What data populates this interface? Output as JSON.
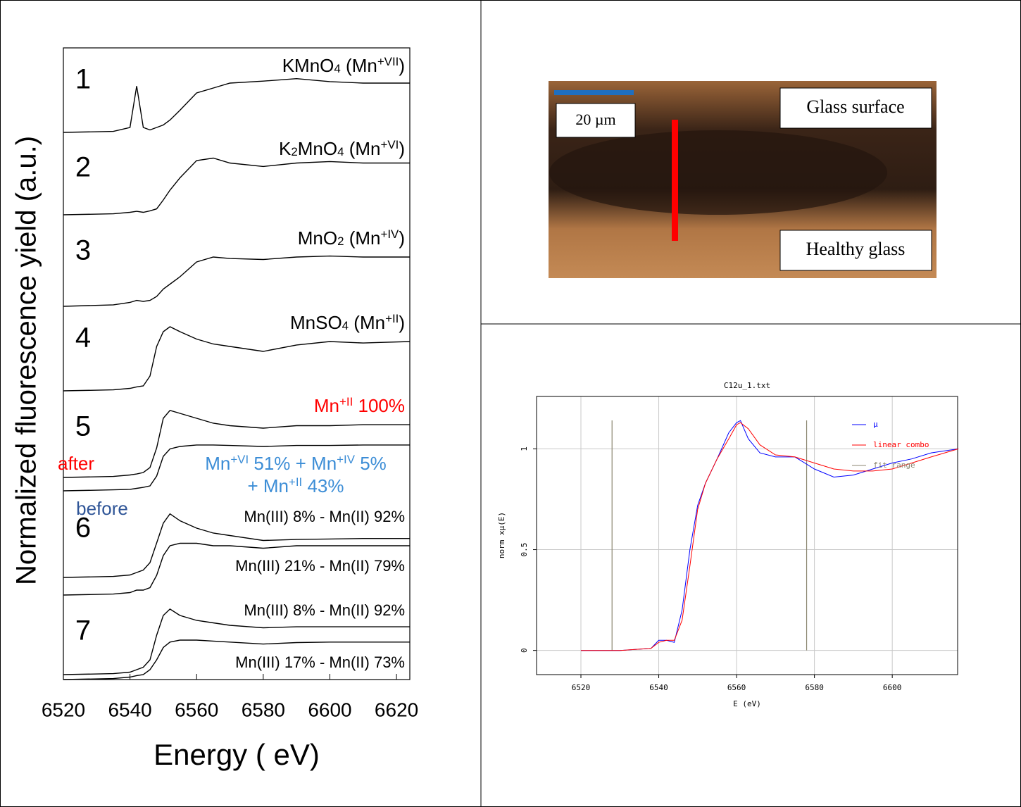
{
  "chart_data": [
    {
      "type": "spectra",
      "x_label": "Energy (  eV)",
      "y_label": "Normalized fluorescence yield (a.u.)",
      "xlim": [
        6520,
        6624
      ],
      "xticks": [
        6520,
        6540,
        6560,
        6580,
        6600,
        6620
      ],
      "color": "#000000",
      "x": [
        6520,
        6535,
        6540,
        6542,
        6544,
        6546,
        6548,
        6550,
        6552,
        6555,
        6560,
        6565,
        6570,
        6580,
        6590,
        6600,
        6610,
        6624
      ],
      "groups": [
        {
          "label": "1",
          "series": [
            {
              "name": [
                [
                  {
                    "text": "KMnO"
                  },
                  {
                    "text": "4",
                    "style": "sub"
                  },
                  {
                    "text": " (Mn"
                  },
                  {
                    "text": "+VII",
                    "style": "sup"
                  },
                  {
                    "text": ")"
                  }
                ]
              ],
              "label_color": "#000000",
              "values": [
                0,
                0.02,
                0.1,
                0.94,
                0.1,
                0.05,
                0.1,
                0.15,
                0.25,
                0.45,
                0.8,
                0.9,
                1.0,
                1.04,
                1.09,
                1.03,
                1.0,
                1.0
              ]
            }
          ]
        },
        {
          "label": "2",
          "series": [
            {
              "name": [
                [
                  {
                    "text": "K"
                  },
                  {
                    "text": "2",
                    "style": "sub"
                  },
                  {
                    "text": "MnO"
                  },
                  {
                    "text": "4",
                    "style": "sub"
                  },
                  {
                    "text": " (Mn"
                  },
                  {
                    "text": "+VI",
                    "style": "sup"
                  },
                  {
                    "text": ")"
                  }
                ]
              ],
              "label_color": "#000000",
              "values": [
                0,
                0.02,
                0.05,
                0.07,
                0.05,
                0.08,
                0.12,
                0.3,
                0.5,
                0.75,
                1.1,
                1.15,
                1.05,
                0.98,
                1.05,
                1.08,
                1.05,
                1.05
              ]
            }
          ]
        },
        {
          "label": "3",
          "series": [
            {
              "name": [
                [
                  {
                    "text": "MnO"
                  },
                  {
                    "text": "2",
                    "style": "sub"
                  },
                  {
                    "text": " (Mn"
                  },
                  {
                    "text": "+IV",
                    "style": "sup"
                  },
                  {
                    "text": ")"
                  }
                ]
              ],
              "label_color": "#000000",
              "values": [
                0,
                0.03,
                0.08,
                0.12,
                0.1,
                0.12,
                0.2,
                0.35,
                0.45,
                0.6,
                0.9,
                1.0,
                0.97,
                0.95,
                1.0,
                1.02,
                1.0,
                1.0
              ]
            }
          ]
        },
        {
          "label": "4",
          "series": [
            {
              "name": [
                [
                  {
                    "text": "MnSO"
                  },
                  {
                    "text": "4",
                    "style": "sub"
                  },
                  {
                    "text": " (Mn"
                  },
                  {
                    "text": "+II",
                    "style": "sup"
                  },
                  {
                    "text": ")"
                  }
                ]
              ],
              "label_color": "#000000",
              "values": [
                0,
                0.02,
                0.05,
                0.08,
                0.1,
                0.3,
                0.9,
                1.2,
                1.3,
                1.2,
                1.05,
                0.95,
                0.9,
                0.8,
                0.93,
                1.0,
                0.97,
                1.0
              ]
            }
          ]
        },
        {
          "label": "5",
          "tags": [
            {
              "text": "after",
              "color": "#ff0000"
            },
            {
              "text": "before",
              "color": "#2f5597"
            }
          ],
          "series": [
            {
              "name": [
                [
                  {
                    "text": "Mn"
                  },
                  {
                    "text": "+II",
                    "style": "sup"
                  },
                  {
                    "text": " 100%"
                  }
                ]
              ],
              "label_color": "#ff0000",
              "values": [
                0,
                0.02,
                0.05,
                0.07,
                0.1,
                0.2,
                0.6,
                1.2,
                1.36,
                1.3,
                1.2,
                1.1,
                1.05,
                1.0,
                1.05,
                1.05,
                1.07,
                1.07
              ]
            },
            {
              "name": [
                [
                  {
                    "text": "Mn"
                  },
                  {
                    "text": "+VI",
                    "style": "sup"
                  },
                  {
                    "text": " 51% + Mn"
                  },
                  {
                    "text": "+IV",
                    "style": "sup"
                  },
                  {
                    "text": " 5%"
                  }
                ],
                [
                  {
                    "text": "+ Mn"
                  },
                  {
                    "text": "+II",
                    "style": "sup"
                  },
                  {
                    "text": " 43%"
                  }
                ]
              ],
              "label_color": "#3c8dd6",
              "values": [
                0,
                0.02,
                0.03,
                0.05,
                0.07,
                0.1,
                0.3,
                0.7,
                0.85,
                0.9,
                0.93,
                0.93,
                0.92,
                0.9,
                0.92,
                0.92,
                0.93,
                0.93
              ]
            }
          ]
        },
        {
          "label": "6",
          "series": [
            {
              "name": [
                [
                  {
                    "text": "Mn(III) 8% - Mn(II) 92%"
                  }
                ]
              ],
              "label_color": "#000000",
              "values": [
                0,
                0.02,
                0.05,
                0.1,
                0.15,
                0.3,
                0.7,
                1.1,
                1.29,
                1.15,
                1.0,
                0.9,
                0.85,
                0.75,
                0.77,
                0.78,
                0.79,
                0.79
              ]
            },
            {
              "name": [
                [
                  {
                    "text": "Mn(III) 21% - Mn(II) 79%"
                  }
                ]
              ],
              "label_color": "#000000",
              "values": [
                0,
                0.02,
                0.05,
                0.1,
                0.1,
                0.15,
                0.4,
                0.8,
                1.0,
                1.05,
                1.05,
                1.0,
                1.0,
                0.95,
                1.0,
                1.0,
                1.0,
                1.0
              ]
            }
          ]
        },
        {
          "label": "7",
          "series": [
            {
              "name": [
                [
                  {
                    "text": "Mn(III) 8% - Mn(II) 92%"
                  }
                ]
              ],
              "label_color": "#000000",
              "values": [
                0,
                0.02,
                0.05,
                0.1,
                0.15,
                0.3,
                0.8,
                1.2,
                1.33,
                1.2,
                1.1,
                1.05,
                1.0,
                0.95,
                0.97,
                0.97,
                0.97,
                0.97
              ]
            },
            {
              "name": [
                [
                  {
                    "text": "Mn(III) 17% - Mn(II) 73%"
                  }
                ]
              ],
              "label_color": "#000000",
              "values": [
                0,
                0.02,
                0.05,
                0.08,
                0.1,
                0.2,
                0.4,
                0.65,
                0.76,
                0.8,
                0.8,
                0.78,
                0.76,
                0.72,
                0.75,
                0.76,
                0.76,
                0.76
              ]
            }
          ]
        }
      ]
    },
    {
      "type": "line",
      "title": "C12u_1.txt",
      "x_label": "E (eV)",
      "y_label": "norm xμ(E)",
      "xlim": [
        6508.6,
        6616.8
      ],
      "ylim": [
        -0.12,
        1.26
      ],
      "xticks": [
        6520,
        6540,
        6560,
        6580,
        6600
      ],
      "yticks": [
        0,
        0.5,
        1
      ],
      "grid": true,
      "legend": "upper right",
      "series": [
        {
          "name": "μ",
          "color": "#0000ff",
          "x": [
            6520,
            6530,
            6538,
            6540,
            6542,
            6544,
            6546,
            6548,
            6550,
            6552,
            6555,
            6558,
            6560,
            6561,
            6563,
            6566,
            6570,
            6575,
            6580,
            6585,
            6590,
            6595,
            6600,
            6605,
            6610,
            6617
          ],
          "values": [
            0,
            0,
            0.01,
            0.05,
            0.05,
            0.04,
            0.2,
            0.5,
            0.72,
            0.83,
            0.95,
            1.08,
            1.13,
            1.14,
            1.05,
            0.98,
            0.96,
            0.96,
            0.9,
            0.86,
            0.87,
            0.9,
            0.93,
            0.95,
            0.98,
            1.0
          ]
        },
        {
          "name": "linear combo",
          "color": "#ff0000",
          "x": [
            6520,
            6530,
            6538,
            6540,
            6542,
            6544,
            6546,
            6548,
            6550,
            6552,
            6555,
            6558,
            6560,
            6561,
            6563,
            6566,
            6570,
            6575,
            6580,
            6585,
            6590,
            6595,
            6600,
            6605,
            6610,
            6617
          ],
          "values": [
            0,
            0,
            0.01,
            0.04,
            0.05,
            0.05,
            0.15,
            0.42,
            0.7,
            0.83,
            0.95,
            1.05,
            1.12,
            1.13,
            1.1,
            1.02,
            0.97,
            0.96,
            0.93,
            0.9,
            0.89,
            0.89,
            0.9,
            0.93,
            0.96,
            1.0
          ]
        }
      ],
      "fit_range": {
        "name": "fit range",
        "color": "#8b8670",
        "x": [
          6528,
          6578
        ]
      }
    }
  ],
  "image_panel": {
    "scale_bar": "20 µm",
    "labels": [
      "Glass surface",
      "Healthy glass"
    ]
  }
}
